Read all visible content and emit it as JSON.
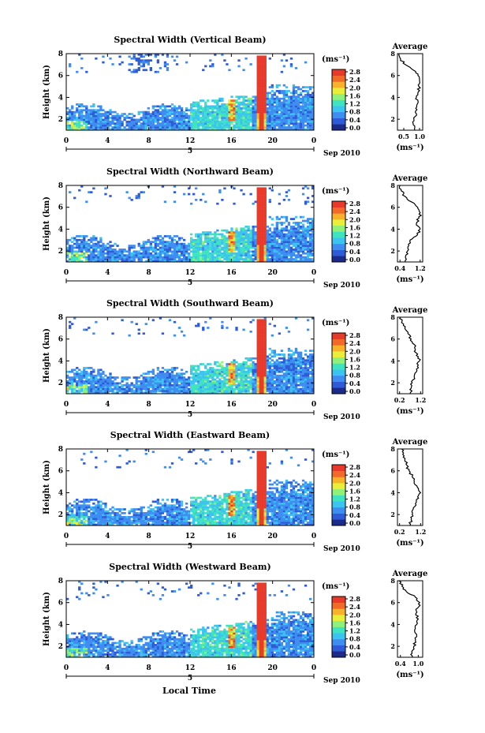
{
  "figure": {
    "xlabel": "Local Time",
    "date_label": "Sep 2010",
    "day_label": "5",
    "colorbar_unit": "(ms⁻¹)",
    "colorbar_ticks": [
      "0.0",
      "0.4",
      "0.8",
      "1.2",
      "1.6",
      "2.0",
      "2.4",
      "2.8"
    ],
    "colormap": [
      "#1c2a8a",
      "#2f5bd6",
      "#3f8df0",
      "#3cc3f0",
      "#3fe3c0",
      "#8ff07a",
      "#e8ee3a",
      "#f7b12a",
      "#f26a2a",
      "#e83a2a"
    ],
    "average_title": "Average",
    "average_xlabel": "(ms⁻¹)"
  },
  "chart_data": [
    {
      "type": "heatmap",
      "title": "Spectral Width (Vertical Beam)",
      "ylabel": "Height (km)",
      "xlabel": "Local Time",
      "x_ticks": [
        "0",
        "4",
        "8",
        "12",
        "16",
        "20",
        "0"
      ],
      "y_ticks": [
        "2",
        "4",
        "6",
        "8"
      ],
      "xlim": [
        0,
        24
      ],
      "ylim": [
        1,
        8
      ],
      "zlim": [
        0,
        2.8
      ],
      "average": {
        "title": "Average",
        "x_ticks": [
          "0.5",
          "1.0"
        ],
        "xlim": [
          0.3,
          1.1
        ],
        "heights": [
          1,
          1.5,
          2,
          2.5,
          3,
          3.5,
          4,
          4.5,
          5,
          5.5,
          6,
          6.5,
          7,
          7.5,
          8
        ],
        "values": [
          0.85,
          0.8,
          0.82,
          0.9,
          0.88,
          0.95,
          0.9,
          0.96,
          0.98,
          1.0,
          0.95,
          0.8,
          0.55,
          0.4,
          0.35
        ]
      }
    },
    {
      "type": "heatmap",
      "title": "Spectral Width (Northward Beam)",
      "ylabel": "Height (km)",
      "xlabel": "Local Time",
      "x_ticks": [
        "0",
        "4",
        "8",
        "12",
        "16",
        "20",
        "0"
      ],
      "y_ticks": [
        "2",
        "4",
        "6",
        "8"
      ],
      "xlim": [
        0,
        24
      ],
      "ylim": [
        1,
        8
      ],
      "zlim": [
        0,
        2.8
      ],
      "average": {
        "title": "Average",
        "x_ticks": [
          "0.4",
          "1.2"
        ],
        "xlim": [
          0.3,
          1.3
        ],
        "heights": [
          1,
          1.5,
          2,
          2.5,
          3,
          3.5,
          4,
          4.5,
          5,
          5.5,
          6,
          6.5,
          7,
          7.5,
          8
        ],
        "values": [
          0.6,
          0.62,
          0.7,
          0.75,
          0.8,
          1.1,
          1.2,
          1.05,
          1.15,
          1.2,
          1.1,
          0.85,
          0.6,
          0.45,
          0.4
        ]
      }
    },
    {
      "type": "heatmap",
      "title": "Spectral Width (Southward Beam)",
      "ylabel": "Height (km)",
      "xlabel": "Local Time",
      "x_ticks": [
        "0",
        "4",
        "8",
        "12",
        "16",
        "20",
        "0"
      ],
      "y_ticks": [
        "2",
        "4",
        "6",
        "8"
      ],
      "xlim": [
        0,
        24
      ],
      "ylim": [
        1,
        8
      ],
      "zlim": [
        0,
        2.8
      ],
      "average": {
        "title": "Average",
        "x_ticks": [
          "0.2",
          "1.2"
        ],
        "xlim": [
          0.1,
          1.3
        ],
        "heights": [
          1,
          1.5,
          2,
          2.5,
          3,
          3.5,
          4,
          4.5,
          5,
          5.5,
          6,
          6.5,
          7,
          7.5,
          8
        ],
        "values": [
          0.7,
          0.75,
          0.8,
          0.9,
          1.0,
          1.05,
          1.15,
          1.0,
          0.95,
          0.9,
          0.75,
          0.6,
          0.45,
          0.3,
          0.25
        ]
      }
    },
    {
      "type": "heatmap",
      "title": "Spectral Width (Eastward Beam)",
      "ylabel": "Height (km)",
      "xlabel": "Local Time",
      "x_ticks": [
        "0",
        "4",
        "8",
        "12",
        "16",
        "20",
        "0"
      ],
      "y_ticks": [
        "2",
        "4",
        "6",
        "8"
      ],
      "xlim": [
        0,
        24
      ],
      "ylim": [
        1,
        8
      ],
      "zlim": [
        0,
        2.8
      ],
      "average": {
        "title": "Average",
        "x_ticks": [
          "0.2",
          "1.2"
        ],
        "xlim": [
          0.1,
          1.3
        ],
        "heights": [
          1,
          1.5,
          2,
          2.5,
          3,
          3.5,
          4,
          4.5,
          5,
          5.5,
          6,
          6.5,
          7,
          7.5,
          8
        ],
        "values": [
          0.7,
          0.75,
          0.8,
          0.85,
          0.95,
          1.1,
          1.2,
          1.05,
          0.9,
          0.8,
          0.65,
          0.55,
          0.45,
          0.35,
          0.3
        ]
      }
    },
    {
      "type": "heatmap",
      "title": "Spectral Width (Westward Beam)",
      "ylabel": "Height (km)",
      "xlabel": "Local Time",
      "x_ticks": [
        "0",
        "4",
        "8",
        "12",
        "16",
        "20",
        "0"
      ],
      "y_ticks": [
        "2",
        "4",
        "6",
        "8"
      ],
      "xlim": [
        0,
        24
      ],
      "ylim": [
        1,
        8
      ],
      "zlim": [
        0,
        2.8
      ],
      "average": {
        "title": "Average",
        "x_ticks": [
          "0.4",
          "1.0"
        ],
        "xlim": [
          0.3,
          1.15
        ],
        "heights": [
          1,
          1.5,
          2,
          2.5,
          3,
          3.5,
          4,
          4.5,
          5,
          5.5,
          6,
          6.5,
          7,
          7.5,
          8
        ],
        "values": [
          0.8,
          0.78,
          0.85,
          0.9,
          0.95,
          0.88,
          0.95,
          1.0,
          0.92,
          0.98,
          1.05,
          0.9,
          0.6,
          0.45,
          0.35
        ]
      }
    }
  ]
}
